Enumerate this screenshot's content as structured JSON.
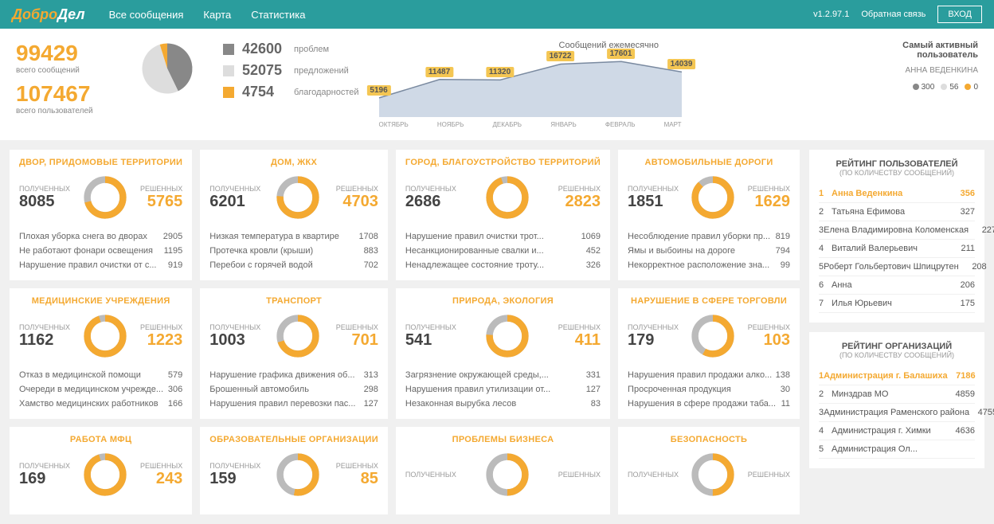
{
  "header": {
    "logo_main": "Добро",
    "logo_accent": "Дел",
    "nav": [
      "Все сообщения",
      "Карта",
      "Статистика"
    ],
    "version": "v1.2.97.1",
    "feedback": "Обратная связь",
    "login": "ВХОД"
  },
  "totals": {
    "messages_num": "99429",
    "messages_label": "всего сообщений",
    "users_num": "107467",
    "users_label": "всего пользователей"
  },
  "pie": {
    "slices": [
      {
        "value": 42600,
        "color": "#888888"
      },
      {
        "value": 52075,
        "color": "#dddddd"
      },
      {
        "value": 4754,
        "color": "#f4a931"
      }
    ]
  },
  "legend": [
    {
      "color": "#888888",
      "num": "42600",
      "label": "проблем"
    },
    {
      "color": "#dddddd",
      "num": "52075",
      "label": "предложений"
    },
    {
      "color": "#f4a931",
      "num": "4754",
      "label": "благодарностей"
    }
  ],
  "area_chart": {
    "title": "Сообщений ежемесячно",
    "months": [
      "ОКТЯБРЬ",
      "НОЯБРЬ",
      "ДЕКАБРЬ",
      "ЯНВАРЬ",
      "ФЕВРАЛЬ",
      "МАРТ"
    ],
    "values": [
      5196,
      11487,
      11320,
      16722,
      17601,
      14039
    ],
    "fill": "#cfd9e6",
    "stroke": "#7a8aa0",
    "label_bg": "#f4c653"
  },
  "activity": {
    "title1": "Самый активный",
    "title2": "пользователь",
    "name": "АННА ВЕДЕНКИНА",
    "dots": [
      {
        "color": "#888888",
        "val": "300"
      },
      {
        "color": "#dddddd",
        "val": "56"
      },
      {
        "color": "#f4a931",
        "val": "0"
      }
    ]
  },
  "labels": {
    "received": "ПОЛУЧЕННЫХ",
    "solved": "РЕШЕННЫХ"
  },
  "colors": {
    "gray": "#bbbbbb",
    "orange": "#f4a931",
    "track": "#eeeeee"
  },
  "cards": [
    {
      "title": "ДВОР, ПРИДОМОВЫЕ ТЕРРИТОРИИ",
      "received": "8085",
      "solved": "5765",
      "pct": 71,
      "items": [
        [
          "Плохая уборка снега во дворах",
          "2905"
        ],
        [
          "Не работают фонари освещения",
          "1195"
        ],
        [
          "Нарушение правил очистки от с...",
          "919"
        ]
      ]
    },
    {
      "title": "ДОМ, ЖКХ",
      "received": "6201",
      "solved": "4703",
      "pct": 76,
      "items": [
        [
          "Низкая температура в квартире",
          "1708"
        ],
        [
          "Протечка кровли (крыши)",
          "883"
        ],
        [
          "Перебои с горячей водой",
          "702"
        ]
      ]
    },
    {
      "title": "ГОРОД, БЛАГОУСТРОЙСТВО ТЕРРИТОРИЙ",
      "received": "2686",
      "solved": "2823",
      "pct": 95,
      "items": [
        [
          "Нарушение правил очистки трот...",
          "1069"
        ],
        [
          "Несанкционированные свалки и...",
          "452"
        ],
        [
          "Ненадлежащее состояние троту...",
          "326"
        ]
      ]
    },
    {
      "title": "АВТОМОБИЛЬНЫЕ ДОРОГИ",
      "received": "1851",
      "solved": "1629",
      "pct": 88,
      "items": [
        [
          "Несоблюдение правил уборки пр...",
          "819"
        ],
        [
          "Ямы и выбоины на дороге",
          "794"
        ],
        [
          "Некорректное расположение зна...",
          "99"
        ]
      ]
    },
    {
      "title": "МЕДИЦИНСКИЕ УЧРЕЖДЕНИЯ",
      "received": "1162",
      "solved": "1223",
      "pct": 95,
      "items": [
        [
          "Отказ в медицинской помощи",
          "579"
        ],
        [
          "Очереди в медицинском учрежде...",
          "306"
        ],
        [
          "Хамство медицинских работников",
          "166"
        ]
      ]
    },
    {
      "title": "ТРАНСПОРТ",
      "received": "1003",
      "solved": "701",
      "pct": 70,
      "items": [
        [
          "Нарушение графика движения об...",
          "313"
        ],
        [
          "Брошенный автомобиль",
          "298"
        ],
        [
          "Нарушения правил перевозки пас...",
          "127"
        ]
      ]
    },
    {
      "title": "ПРИРОДА, ЭКОЛОГИЯ",
      "received": "541",
      "solved": "411",
      "pct": 76,
      "items": [
        [
          "Загрязнение окружающей среды,...",
          "331"
        ],
        [
          "Нарушения правил утилизации от...",
          "127"
        ],
        [
          "Незаконная вырубка лесов",
          "83"
        ]
      ]
    },
    {
      "title": "НАРУШЕНИЕ В СФЕРЕ ТОРГОВЛИ",
      "received": "179",
      "solved": "103",
      "pct": 58,
      "items": [
        [
          "Нарушения правил продажи алко...",
          "138"
        ],
        [
          "Просроченная продукция",
          "30"
        ],
        [
          "Нарушения в сфере продажи таба...",
          "11"
        ]
      ]
    },
    {
      "title": "РАБОТА МФЦ",
      "received": "169",
      "solved": "243",
      "pct": 95,
      "items": []
    },
    {
      "title": "ОБРАЗОВАТЕЛЬНЫЕ ОРГАНИЗАЦИИ",
      "received": "159",
      "solved": "85",
      "pct": 53,
      "items": []
    },
    {
      "title": "ПРОБЛЕМЫ БИЗНЕСА",
      "received": "",
      "solved": "",
      "pct": 50,
      "items": []
    },
    {
      "title": "БЕЗОПАСНОСТЬ",
      "received": "",
      "solved": "",
      "pct": 50,
      "items": []
    }
  ],
  "user_ranking": {
    "title": "РЕЙТИНГ ПОЛЬЗОВАТЕЛЕЙ",
    "sub": "(ПО КОЛИЧЕСТВУ СООБЩЕНИЙ)",
    "rows": [
      {
        "n": "1",
        "name": "Анна Веденкина",
        "val": "356",
        "hl": true
      },
      {
        "n": "2",
        "name": "Татьяна Ефимова",
        "val": "327"
      },
      {
        "n": "3",
        "name": "Елена Владимировна Коломенская",
        "val": "227"
      },
      {
        "n": "4",
        "name": "Виталий Валерьевич",
        "val": "211"
      },
      {
        "n": "5",
        "name": "Роберт Гольбертович Шпицрутен",
        "val": "208"
      },
      {
        "n": "6",
        "name": "Анна",
        "val": "206"
      },
      {
        "n": "7",
        "name": "Илья Юрьевич",
        "val": "175"
      }
    ]
  },
  "org_ranking": {
    "title": "РЕЙТИНГ ОРГАНИЗАЦИЙ",
    "sub": "(ПО КОЛИЧЕСТВУ СООБЩЕНИЙ)",
    "rows": [
      {
        "n": "1",
        "name": "Администрация г. Балашиха",
        "val": "7186",
        "hl": true
      },
      {
        "n": "2",
        "name": "Минздрав МО",
        "val": "4859"
      },
      {
        "n": "3",
        "name": "Администрация Раменского района",
        "val": "4755"
      },
      {
        "n": "4",
        "name": "Администрация г. Химки",
        "val": "4636"
      },
      {
        "n": "5",
        "name": "Администрация Ол...",
        "val": ""
      }
    ]
  }
}
